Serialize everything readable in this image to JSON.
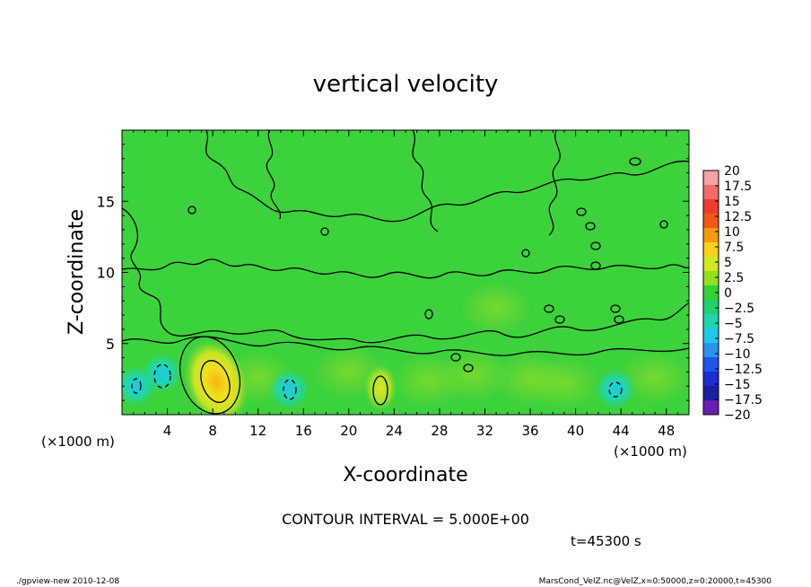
{
  "chart_data": {
    "type": "heatmap",
    "title": "vertical velocity",
    "xlabel": "X-coordinate",
    "ylabel": "Z-coordinate",
    "x_unit": "(×1000 m)",
    "y_unit": "(×1000 m)",
    "xlim": [
      0,
      50
    ],
    "ylim": [
      0,
      20
    ],
    "x_ticks": [
      4,
      8,
      12,
      16,
      20,
      24,
      28,
      32,
      36,
      40,
      44,
      48
    ],
    "y_ticks": [
      5,
      10,
      15
    ],
    "colorbar": {
      "levels": [
        20,
        17.5,
        15,
        12.5,
        10,
        7.5,
        5,
        2.5,
        0,
        -2.5,
        -5,
        -7.5,
        -10,
        -12.5,
        -15,
        -17.5,
        -20
      ],
      "labels": [
        "20",
        "17.5",
        "15",
        "12.5",
        "10",
        "7.5",
        "5",
        "2.5",
        "0",
        "−2.5",
        "−5",
        "−7.5",
        "−10",
        "−12.5",
        "−15",
        "−17.5",
        "−20"
      ],
      "colors": [
        "#f3a3a3",
        "#f36b6b",
        "#f03c2d",
        "#f05a14",
        "#f49a0c",
        "#f5d21b",
        "#d2e624",
        "#93e01e",
        "#34d234",
        "#1fd26e",
        "#1fd6b0",
        "#1fc8e6",
        "#2a93f0",
        "#1f55ea",
        "#1a2fcc",
        "#1e1ea0",
        "#6a1fb0"
      ]
    },
    "features": [
      {
        "kind": "updraft",
        "x": 8.3,
        "z": 2.3,
        "value": 7.5
      },
      {
        "kind": "updraft",
        "x": 22.8,
        "z": 1.9,
        "value": 2.5
      },
      {
        "kind": "downdraft",
        "x": 3.5,
        "z": 2.9,
        "value": -5
      },
      {
        "kind": "downdraft",
        "x": 1.2,
        "z": 2.0,
        "value": -5
      },
      {
        "kind": "downdraft",
        "x": 14.7,
        "z": 1.8,
        "value": -5
      },
      {
        "kind": "downdraft",
        "x": 43.5,
        "z": 1.8,
        "value": -5
      }
    ],
    "contour_interval": "5.000E+00",
    "time": "t=45300 s"
  },
  "annotations": {
    "contour_text": "CONTOUR INTERVAL = 5.000E+00",
    "time_text": "t=45300 s",
    "footer_left": "./gpview-new  2010-12-08",
    "footer_right": "MarsCond_VelZ.nc@VelZ,x=0:50000,z=0:20000,t=45300"
  },
  "colors": {
    "field_background": "#3cd23c",
    "line": "#000000"
  }
}
